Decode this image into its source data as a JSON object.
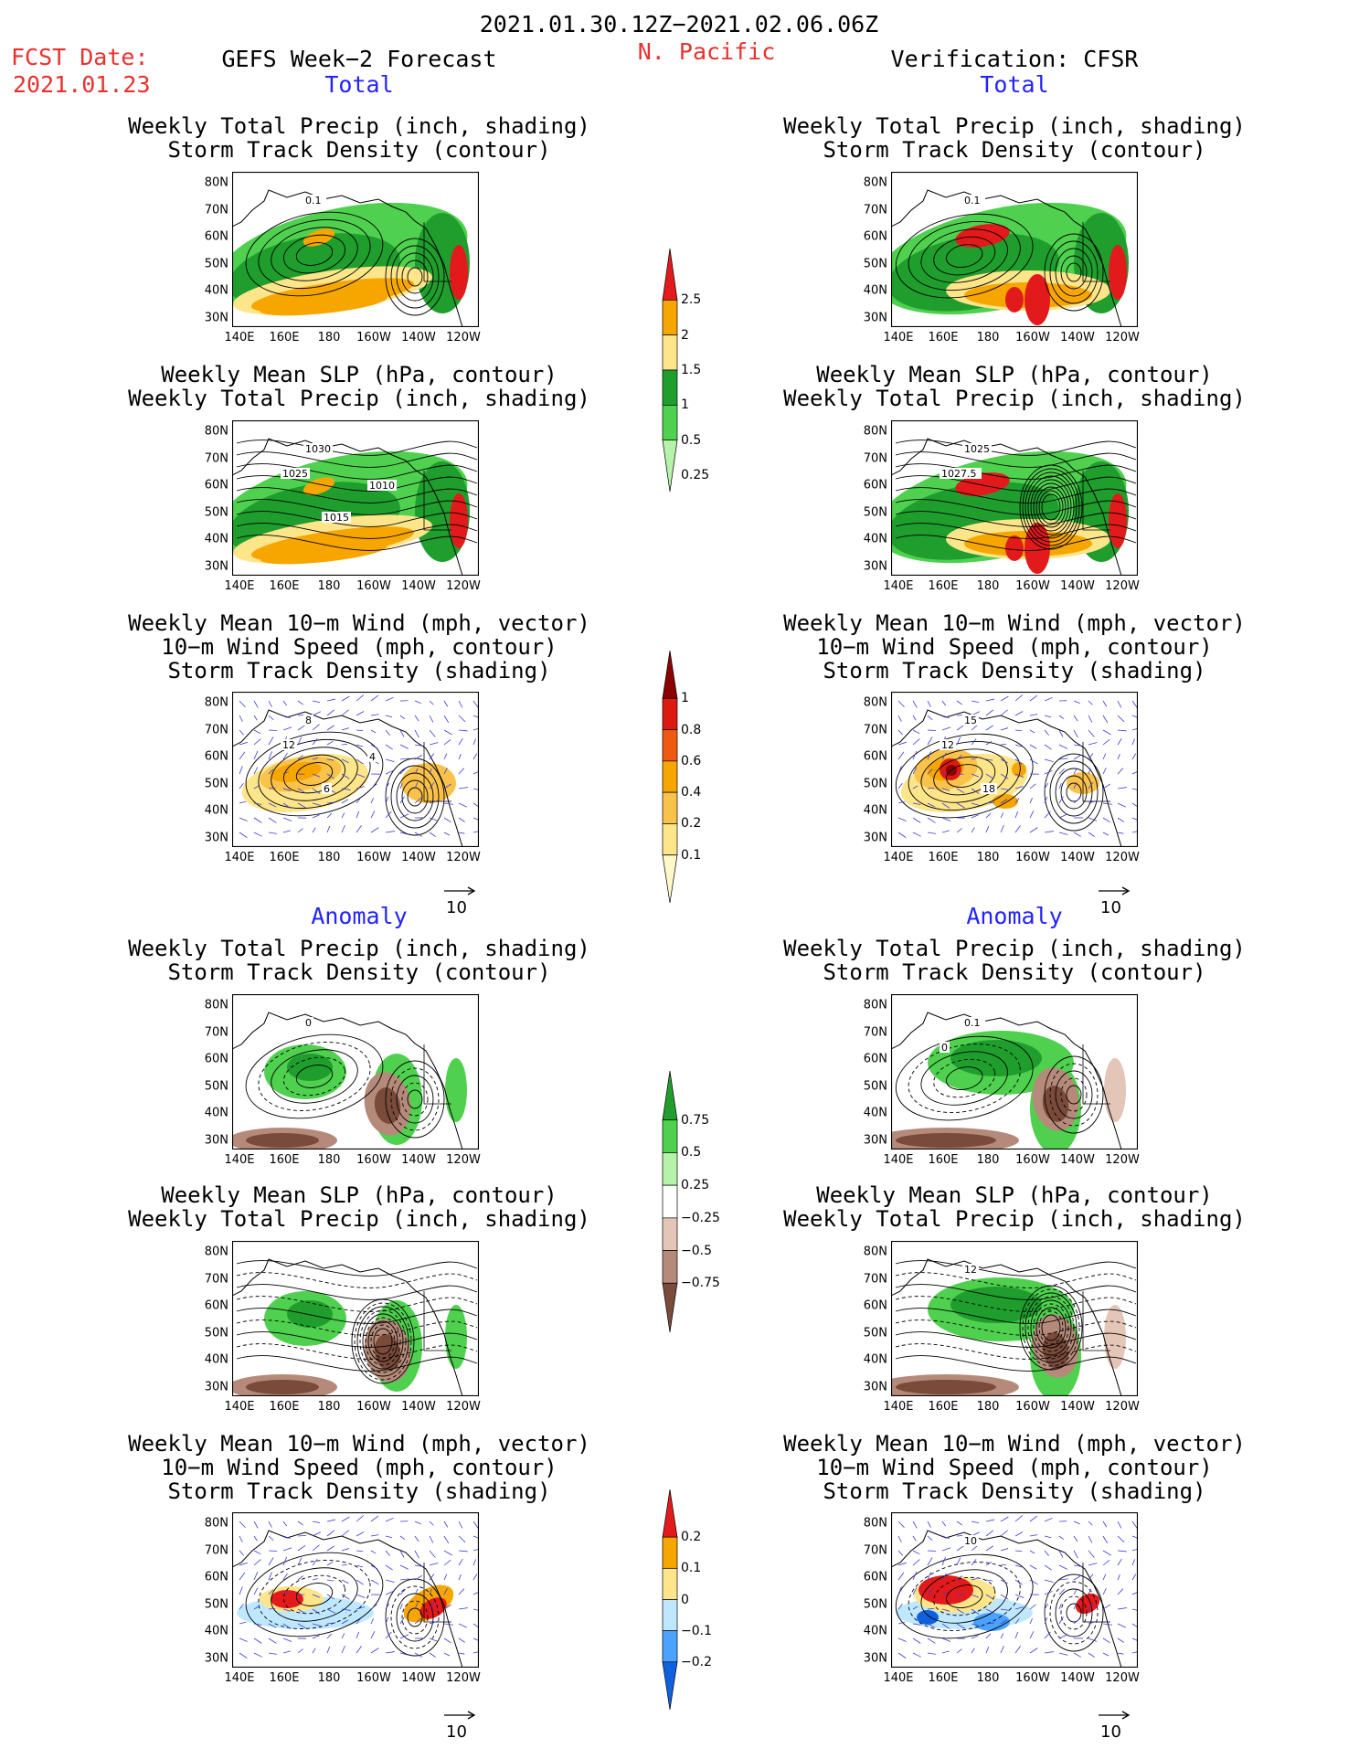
{
  "header": {
    "date_range": "2021.01.30.12Z−2021.02.06.06Z",
    "region": "N. Pacific",
    "fcst_label": "FCST Date:",
    "fcst_date": "2021.01.23",
    "left_title": "GEFS Week−2 Forecast",
    "right_title": "Verification: CFSR"
  },
  "sections": {
    "total": "Total",
    "anomaly": "Anomaly"
  },
  "panel_titles": {
    "precip_track": [
      "Weekly Total Precip (inch, shading)",
      "Storm Track Density (contour)"
    ],
    "slp_precip": [
      "Weekly Mean SLP (hPa, contour)",
      "Weekly Total Precip (inch, shading)"
    ],
    "wind_track": [
      "Weekly Mean 10−m Wind (mph, vector)",
      "10−m Wind Speed (mph, contour)",
      "Storm Track Density (shading)"
    ]
  },
  "axes": {
    "lat_ticks": [
      "80N",
      "70N",
      "60N",
      "50N",
      "40N",
      "30N"
    ],
    "lon_ticks": [
      "140E",
      "160E",
      "180",
      "160W",
      "140W",
      "120W"
    ]
  },
  "vector_ref": "10",
  "colorbars": [
    {
      "name": "total-precip",
      "labels": [
        "2.5",
        "2",
        "1.5",
        "1",
        "0.5",
        "0.25"
      ],
      "colors": [
        "#e31a1c",
        "#f7a600",
        "#fde58a",
        "#1f9e2e",
        "#4fd14f",
        "#b6f2a8"
      ]
    },
    {
      "name": "total-track",
      "labels": [
        "1",
        "0.8",
        "0.6",
        "0.4",
        "0.2",
        "0.1"
      ],
      "colors": [
        "#8b0000",
        "#dd1a10",
        "#f05a10",
        "#f7a600",
        "#f9c24a",
        "#fde58a",
        "#fff8c8"
      ]
    },
    {
      "name": "anom-precip",
      "labels": [
        "0.75",
        "0.5",
        "0.25",
        "−0.25",
        "−0.5",
        "−0.75"
      ],
      "colors": [
        "#1f9e2e",
        "#4fd14f",
        "#b6f2a8",
        "#ffffff",
        "#e4c6b8",
        "#b58a7a",
        "#7a4a3a"
      ]
    },
    {
      "name": "anom-track",
      "labels": [
        "0.2",
        "0.1",
        "0",
        "−0.1",
        "−0.2"
      ],
      "colors": [
        "#e31a1c",
        "#f7a600",
        "#fde58a",
        "#bfe8ff",
        "#4aa3ff",
        "#1061e0"
      ]
    }
  ],
  "contour_labels": {
    "fc_precip": [
      "0.1"
    ],
    "ob_precip": [
      "0.1"
    ],
    "fc_slp": [
      "1030",
      "1025",
      "1015",
      "1010"
    ],
    "ob_slp": [
      "1025",
      "1027.5"
    ],
    "fc_wind": [
      "8",
      "12",
      "6",
      "4"
    ],
    "ob_wind": [
      "15",
      "12",
      "18"
    ],
    "fca_precip": [
      "0"
    ],
    "oba_precip": [
      "0.1",
      "0"
    ],
    "oba_slp": [
      "12"
    ],
    "oba_wind": [
      "10"
    ]
  }
}
